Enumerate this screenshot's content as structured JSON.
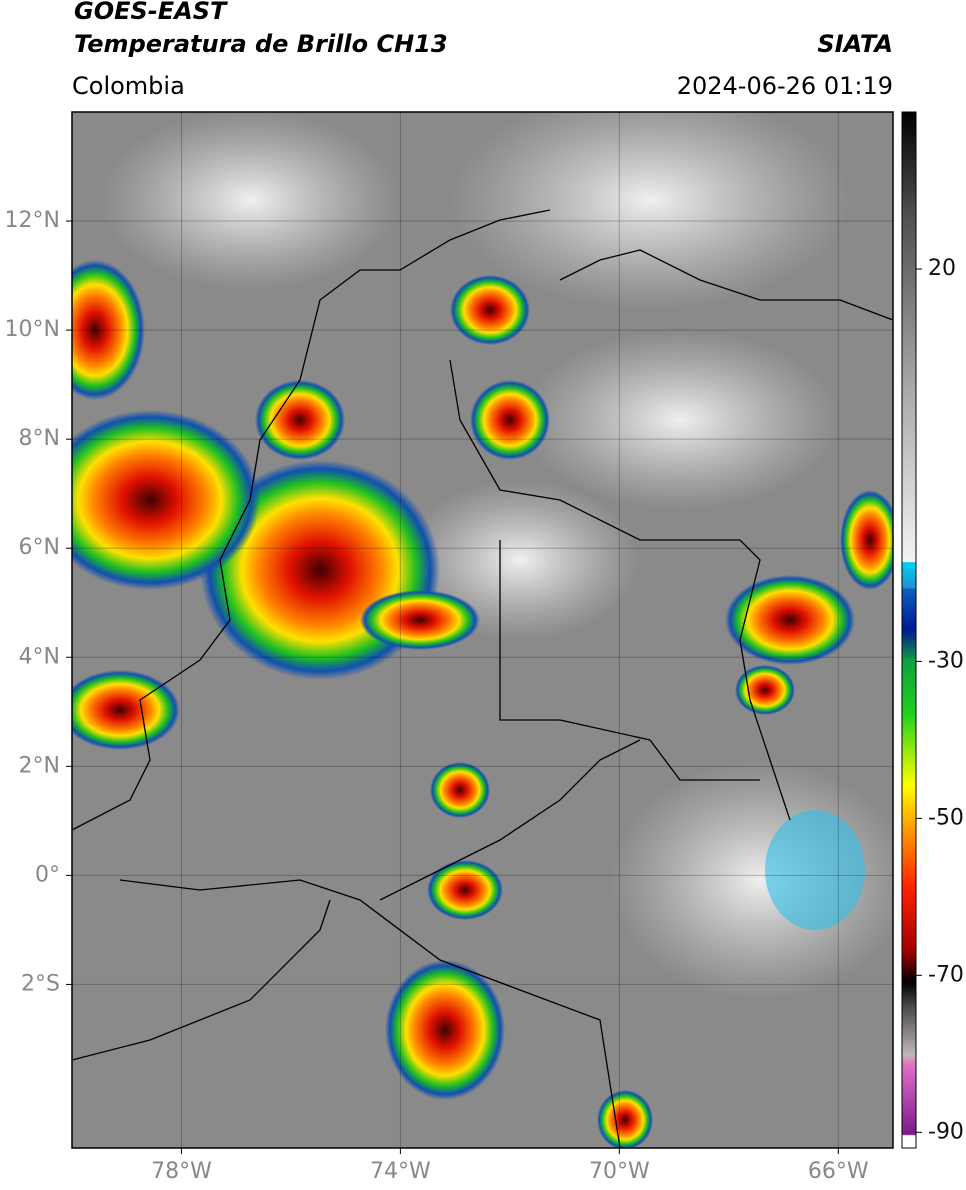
{
  "header": {
    "title": "GOES-EAST",
    "subtitle": "Temperatura de Brillo CH13",
    "source": "SIATA",
    "region": "Colombia",
    "datetime": "2024-06-26 01:19"
  },
  "map": {
    "xlim": [
      -80,
      -65
    ],
    "ylim": [
      -5,
      14
    ],
    "xticks": [
      {
        "value": -78,
        "label": "78°W"
      },
      {
        "value": -74,
        "label": "74°W"
      },
      {
        "value": -70,
        "label": "70°W"
      },
      {
        "value": -66,
        "label": "66°W"
      }
    ],
    "yticks": [
      {
        "value": 12,
        "label": "12°N"
      },
      {
        "value": 10,
        "label": "10°N"
      },
      {
        "value": 8,
        "label": "8°N"
      },
      {
        "value": 6,
        "label": "6°N"
      },
      {
        "value": 4,
        "label": "4°N"
      },
      {
        "value": 2,
        "label": "2°N"
      },
      {
        "value": 0,
        "label": "0°"
      },
      {
        "value": -2,
        "label": "2°S"
      }
    ]
  },
  "colorbar": {
    "lim": [
      -92,
      40
    ],
    "ticks": [
      20,
      -30,
      -50,
      -70,
      -90
    ]
  }
}
